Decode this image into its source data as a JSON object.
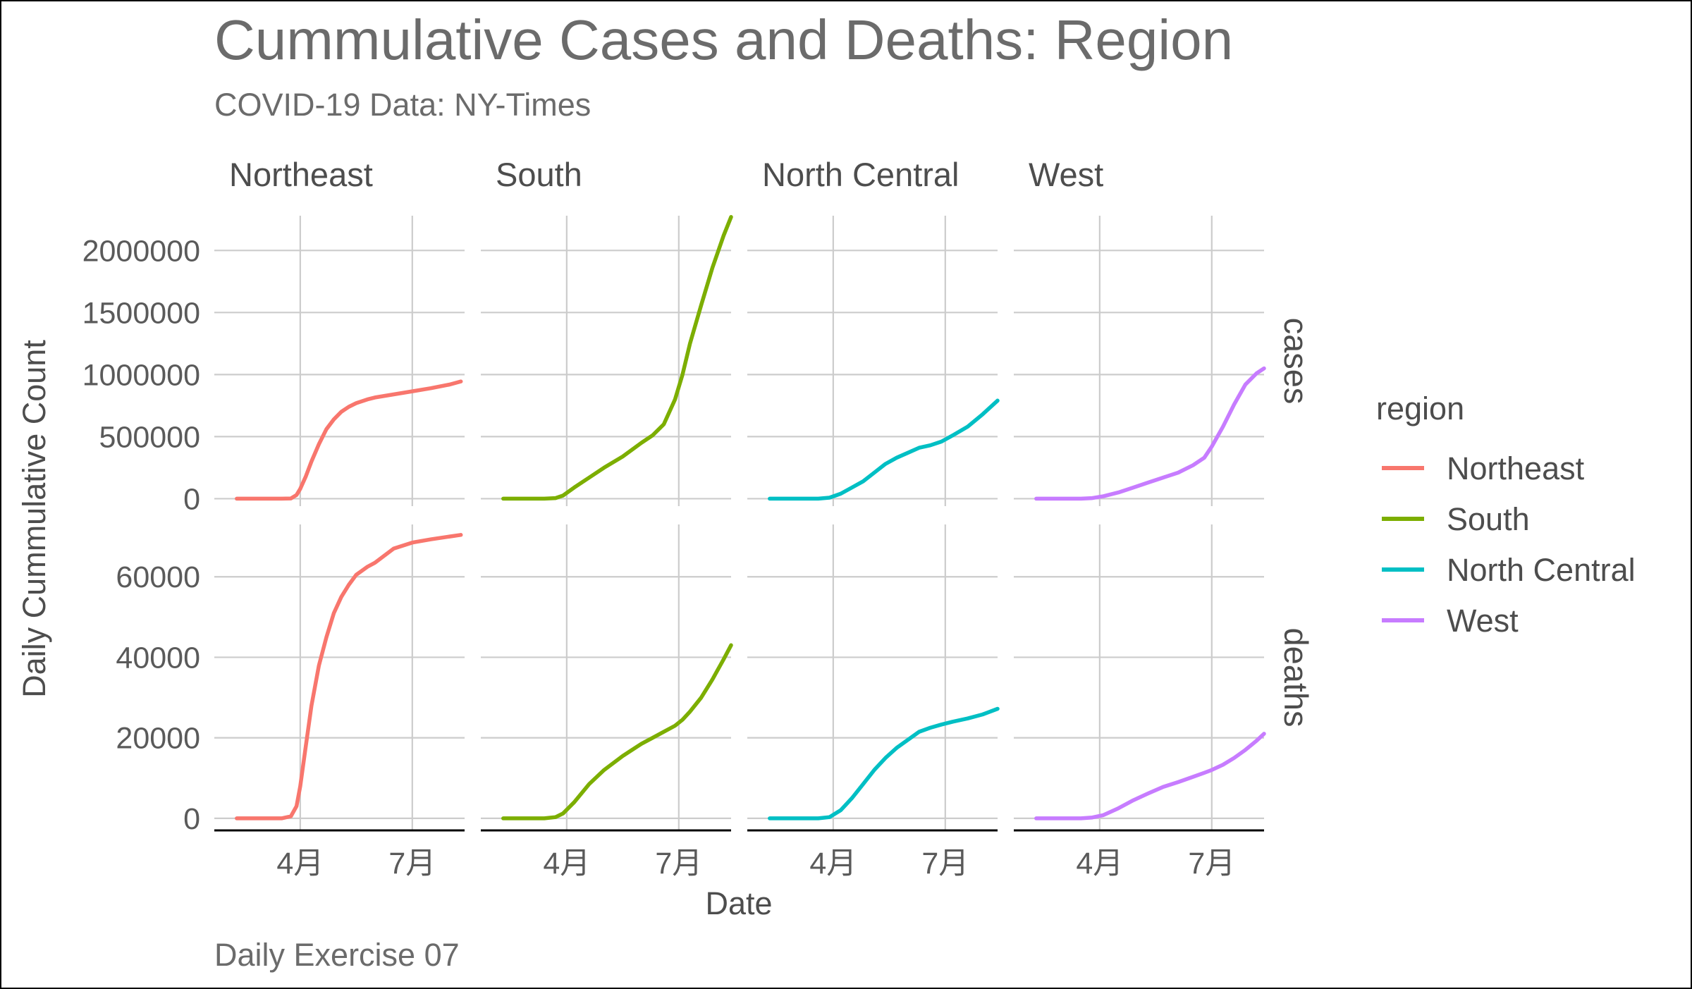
{
  "chart_data": {
    "type": "line",
    "title": "Cummulative Cases and Deaths: Region",
    "subtitle": "COVID-19 Data: NY-Times",
    "caption": "Daily Exercise 07",
    "xlabel": "Date",
    "ylabel": "Daily Cummulative Count",
    "x_ticks": [
      "4月",
      "7月"
    ],
    "x_domain_months": [
      1.7,
      8.4
    ],
    "x_tick_positions_months": [
      4,
      7
    ],
    "legend_title": "region",
    "legend_position": "right",
    "grid": true,
    "columns": [
      "Northeast",
      "South",
      "North Central",
      "West"
    ],
    "rows": [
      {
        "name": "cases",
        "ylim": [
          -60000,
          2280000
        ],
        "ticks": [
          0,
          500000,
          1000000,
          1500000,
          2000000
        ],
        "tick_labels": [
          "0",
          "500000",
          "1000000",
          "1500000",
          "2000000"
        ]
      },
      {
        "name": "deaths",
        "ylim": [
          -3000,
          73000
        ],
        "ticks": [
          0,
          20000,
          40000,
          60000
        ],
        "tick_labels": [
          "0",
          "20000",
          "40000",
          "60000"
        ]
      }
    ],
    "series": [
      {
        "name": "Northeast",
        "color": "#F8766D",
        "months": [
          2.3,
          3.5,
          3.75,
          3.9,
          4.0,
          4.15,
          4.3,
          4.5,
          4.7,
          4.9,
          5.1,
          5.3,
          5.5,
          5.8,
          6.0,
          6.5,
          7.0,
          7.5,
          8.0,
          8.3
        ],
        "cases": [
          0,
          0,
          2000,
          30000,
          80000,
          180000,
          300000,
          440000,
          560000,
          640000,
          700000,
          740000,
          770000,
          800000,
          815000,
          840000,
          865000,
          890000,
          920000,
          945000
        ],
        "deaths": [
          0,
          0,
          500,
          3000,
          8000,
          18000,
          28000,
          38000,
          45000,
          51000,
          55000,
          58000,
          60500,
          62500,
          63500,
          67000,
          68500,
          69300,
          70000,
          70400
        ]
      },
      {
        "name": "South",
        "color": "#7CAE00",
        "months": [
          2.3,
          3.4,
          3.7,
          3.9,
          4.2,
          4.6,
          5.0,
          5.5,
          6.0,
          6.3,
          6.6,
          6.9,
          7.1,
          7.3,
          7.6,
          7.9,
          8.2,
          8.4
        ],
        "cases": [
          0,
          0,
          5000,
          25000,
          90000,
          170000,
          250000,
          340000,
          450000,
          510000,
          600000,
          800000,
          1000000,
          1250000,
          1560000,
          1860000,
          2120000,
          2270000
        ],
        "deaths": [
          0,
          0,
          300,
          1200,
          4000,
          8500,
          12000,
          15500,
          18500,
          20000,
          21500,
          23000,
          24500,
          26500,
          30000,
          34500,
          39500,
          43000
        ]
      },
      {
        "name": "North Central",
        "color": "#00BFC4",
        "months": [
          2.3,
          3.6,
          3.9,
          4.2,
          4.5,
          4.8,
          5.1,
          5.4,
          5.7,
          6.0,
          6.3,
          6.6,
          6.9,
          7.2,
          7.6,
          8.0,
          8.4
        ],
        "cases": [
          0,
          0,
          8000,
          40000,
          90000,
          140000,
          210000,
          280000,
          330000,
          370000,
          410000,
          430000,
          460000,
          510000,
          580000,
          680000,
          790000
        ],
        "deaths": [
          0,
          0,
          300,
          2000,
          5000,
          8500,
          12000,
          15000,
          17500,
          19500,
          21500,
          22500,
          23300,
          24000,
          24800,
          25800,
          27200
        ]
      },
      {
        "name": "West",
        "color": "#C77CFF",
        "months": [
          2.3,
          3.5,
          3.8,
          4.1,
          4.5,
          4.9,
          5.3,
          5.7,
          6.1,
          6.5,
          6.8,
          7.0,
          7.3,
          7.6,
          7.9,
          8.2,
          8.4
        ],
        "cases": [
          0,
          0,
          5000,
          20000,
          50000,
          90000,
          130000,
          170000,
          210000,
          270000,
          330000,
          420000,
          580000,
          760000,
          920000,
          1010000,
          1050000
        ],
        "deaths": [
          0,
          0,
          200,
          800,
          2500,
          4500,
          6200,
          7800,
          9000,
          10300,
          11300,
          12000,
          13300,
          15000,
          17000,
          19300,
          21000
        ]
      }
    ]
  }
}
